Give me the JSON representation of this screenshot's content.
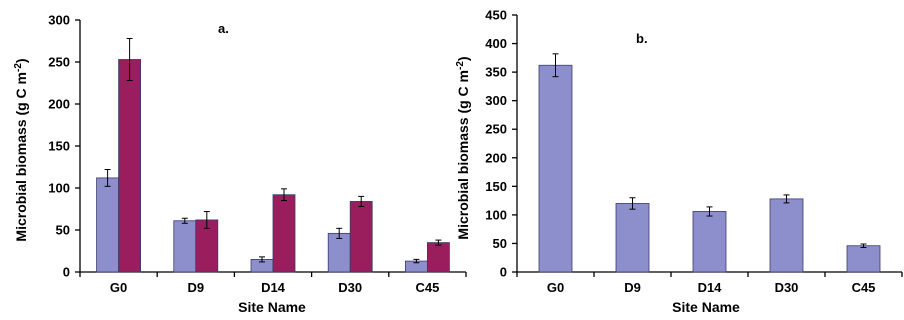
{
  "chart_data": [
    {
      "panel": "a.",
      "type": "bar",
      "categories": [
        "G0",
        "D9",
        "D14",
        "D30",
        "C45"
      ],
      "series": [
        {
          "color": "#8d8fcc",
          "values": [
            112,
            61,
            15,
            46,
            13
          ],
          "errors": [
            10,
            3,
            3,
            6,
            2
          ]
        },
        {
          "color": "#9a1e5e",
          "values": [
            253,
            62,
            92,
            84,
            35
          ],
          "errors": [
            25,
            10,
            7,
            6,
            3
          ]
        }
      ],
      "xlabel": "Site Name",
      "ylabel": "Microbial biomass (g C m",
      "ylabel_sup": "-2",
      "ylabel_close": ")",
      "ylim": [
        0,
        300
      ],
      "yticks": [
        0,
        50,
        100,
        150,
        200,
        250,
        300
      ]
    },
    {
      "panel": "b.",
      "type": "bar",
      "categories": [
        "G0",
        "D9",
        "D14",
        "D30",
        "C45"
      ],
      "series": [
        {
          "color": "#8d8fcc",
          "values": [
            362,
            120,
            106,
            128,
            46
          ],
          "errors": [
            20,
            10,
            8,
            7,
            3
          ]
        }
      ],
      "xlabel": "Site Name",
      "ylabel": "Microbial biomass (g C m",
      "ylabel_sup": "-2",
      "ylabel_close": ")",
      "ylim": [
        0,
        450
      ],
      "yticks": [
        0,
        50,
        100,
        150,
        200,
        250,
        300,
        350,
        400,
        450
      ]
    }
  ]
}
